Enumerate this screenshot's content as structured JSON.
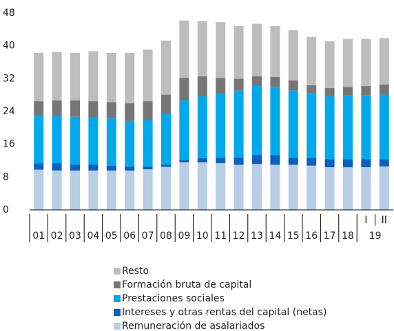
{
  "chart_data": {
    "type": "stacked_bar",
    "categories": [
      "01",
      "02",
      "03",
      "04",
      "05",
      "06",
      "07",
      "08",
      "09",
      "10",
      "11",
      "12",
      "13",
      "14",
      "15",
      "16",
      "17",
      "18",
      "I",
      "II"
    ],
    "group_label": "19",
    "ylim": [
      0,
      48
    ],
    "yticks": [
      0,
      8,
      16,
      24,
      32,
      40,
      48
    ],
    "series": [
      {
        "name": "Remuneración de asalariados",
        "color": "#b8cde6",
        "values": [
          9.8,
          9.6,
          9.6,
          9.6,
          9.6,
          9.6,
          9.9,
          10.5,
          11.6,
          11.6,
          11.4,
          11.0,
          11.2,
          11.0,
          11.0,
          10.8,
          10.4,
          10.4,
          10.4,
          10.6
        ]
      },
      {
        "name": "Intereses y otras rentas del capital (netas)",
        "color": "#0a5fbf",
        "values": [
          1.6,
          1.8,
          1.4,
          1.4,
          1.2,
          1.0,
          0.7,
          0.5,
          0.6,
          1.0,
          1.4,
          1.8,
          2.2,
          2.4,
          1.8,
          1.8,
          2.0,
          2.0,
          2.0,
          1.8
        ]
      },
      {
        "name": "Prestaciones sociales",
        "color": "#00a9ec",
        "values": [
          11.5,
          11.5,
          11.7,
          11.5,
          11.5,
          11.1,
          11.3,
          12.5,
          14.5,
          15.1,
          15.5,
          16.3,
          16.8,
          16.6,
          16.3,
          15.9,
          15.3,
          15.5,
          15.5,
          15.7
        ]
      },
      {
        "name": "Formación bruta de capital",
        "color": "#767676",
        "values": [
          3.6,
          3.8,
          4.0,
          4.0,
          4.0,
          4.3,
          4.6,
          4.6,
          5.5,
          4.9,
          3.9,
          2.9,
          2.4,
          2.4,
          2.5,
          1.9,
          2.0,
          2.1,
          2.3,
          2.5
        ]
      },
      {
        "name": "Resto",
        "color": "#bdbdbd",
        "values": [
          11.8,
          11.8,
          11.6,
          12.2,
          12.0,
          12.3,
          12.6,
          13.2,
          14.0,
          13.4,
          13.6,
          12.8,
          12.8,
          12.4,
          12.2,
          11.8,
          11.4,
          11.7,
          11.5,
          11.3
        ]
      }
    ]
  }
}
